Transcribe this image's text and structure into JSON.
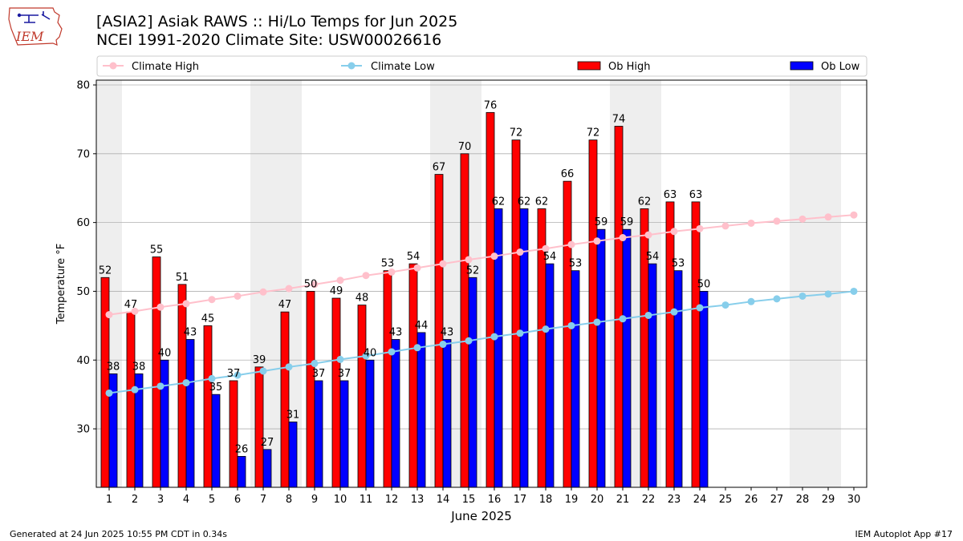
{
  "header": {
    "title_line1": "[ASIA2] Asiak RAWS :: Hi/Lo Temps for Jun 2025",
    "title_line2": "NCEI 1991-2020 Climate Site: USW00026616",
    "logo_text": "IEM"
  },
  "footer": {
    "generated": "Generated at 24 Jun 2025 10:55 PM CDT in 0.34s",
    "app": "IEM Autoplot App #17"
  },
  "colors": {
    "ob_high": "#ff0000",
    "ob_low": "#0000ff",
    "climate_high": "#ffc0cb",
    "climate_low": "#87ceeb",
    "weekend_shade": "#eeeeee",
    "grid": "#b0b0b0"
  },
  "chart_data": {
    "type": "bar",
    "xlabel": "June 2025",
    "ylabel": "Temperature °F",
    "ylim": [
      21.5,
      80.7
    ],
    "yticks": [
      30,
      40,
      50,
      60,
      70,
      80
    ],
    "grid": "horizontal",
    "legend_position": "top",
    "categories": [
      1,
      2,
      3,
      4,
      5,
      6,
      7,
      8,
      9,
      10,
      11,
      12,
      13,
      14,
      15,
      16,
      17,
      18,
      19,
      20,
      21,
      22,
      23,
      24,
      25,
      26,
      27,
      28,
      29,
      30
    ],
    "weekend_days": [
      1,
      7,
      8,
      14,
      15,
      21,
      22,
      28,
      29
    ],
    "series": [
      {
        "name": "Climate High",
        "type": "line",
        "values": [
          46.6,
          47.1,
          47.7,
          48.2,
          48.8,
          49.3,
          49.9,
          50.4,
          51.0,
          51.6,
          52.3,
          52.8,
          53.4,
          54.0,
          54.6,
          55.1,
          55.7,
          56.2,
          56.8,
          57.3,
          57.8,
          58.2,
          58.7,
          59.1,
          59.5,
          59.9,
          60.2,
          60.5,
          60.8,
          61.1
        ]
      },
      {
        "name": "Climate Low",
        "type": "line",
        "values": [
          35.2,
          35.7,
          36.2,
          36.7,
          37.3,
          37.8,
          38.4,
          39.0,
          39.5,
          40.1,
          40.6,
          41.2,
          41.8,
          42.3,
          42.8,
          43.4,
          43.9,
          44.5,
          45.0,
          45.5,
          46.0,
          46.5,
          47.0,
          47.6,
          48.0,
          48.5,
          48.9,
          49.3,
          49.6,
          50.0
        ]
      },
      {
        "name": "Ob High",
        "type": "bar",
        "values": [
          52,
          47,
          55,
          51,
          45,
          37,
          39,
          47,
          50,
          49,
          48,
          53,
          54,
          67,
          70,
          76,
          72,
          62,
          66,
          72,
          74,
          62,
          63,
          63,
          null,
          null,
          null,
          null,
          null,
          null
        ]
      },
      {
        "name": "Ob Low",
        "type": "bar",
        "values": [
          38,
          38,
          40,
          43,
          35,
          26,
          27,
          31,
          37,
          37,
          40,
          43,
          44,
          43,
          52,
          62,
          62,
          54,
          53,
          59,
          59,
          54,
          53,
          50,
          null,
          null,
          null,
          null,
          null,
          null
        ]
      }
    ]
  }
}
